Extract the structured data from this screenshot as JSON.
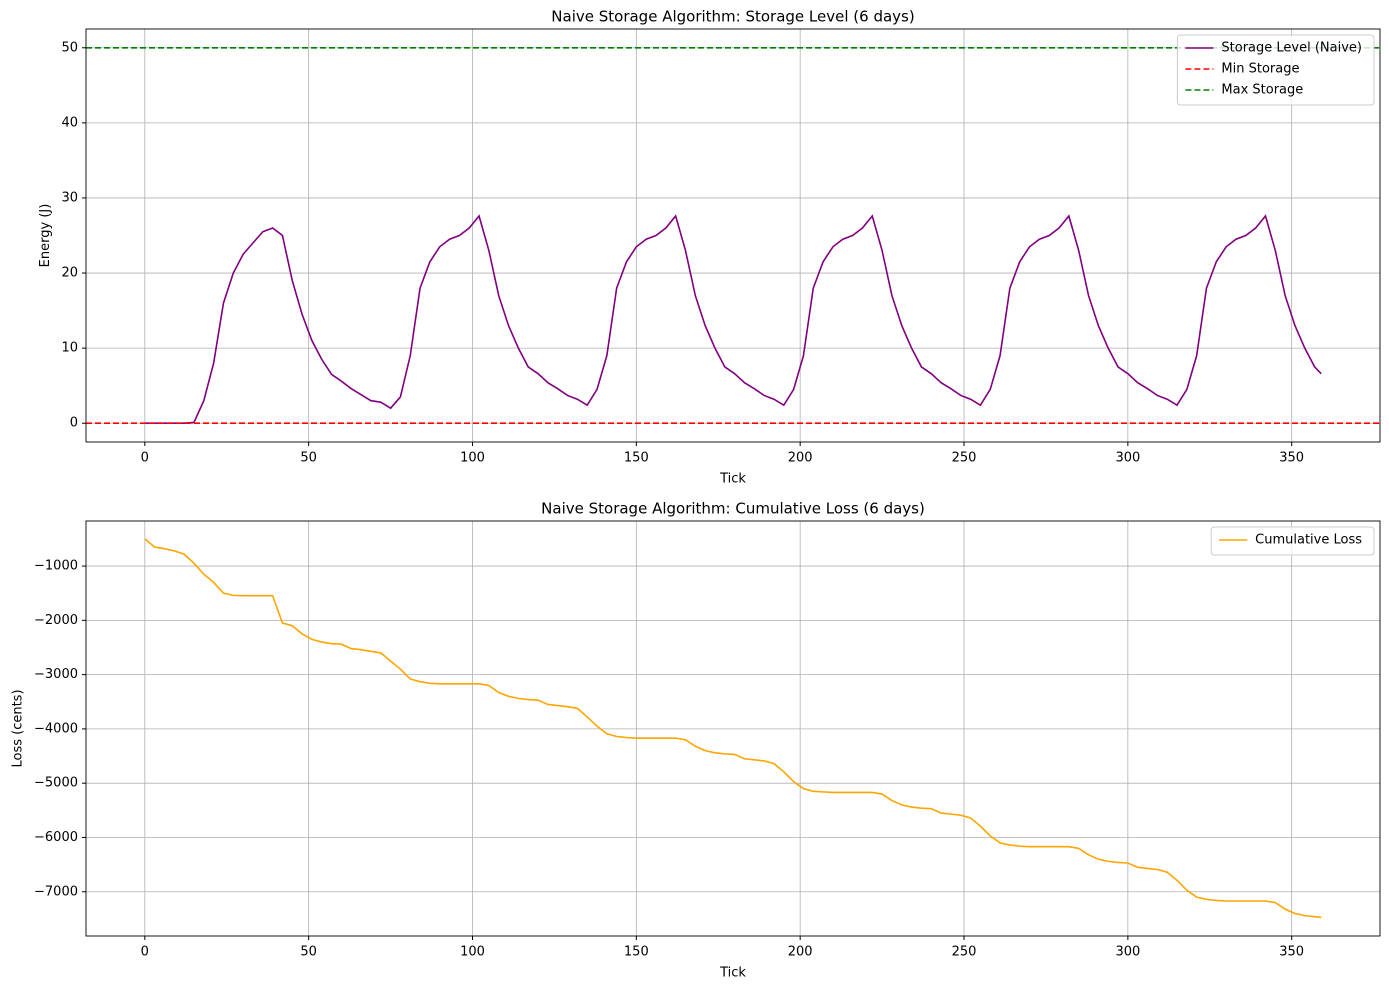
{
  "chart_data": [
    {
      "type": "line",
      "title": "Naive Storage Algorithm: Storage Level (6 days)",
      "xlabel": "Tick",
      "ylabel": "Energy (J)",
      "x": [
        0,
        3,
        6,
        9,
        12,
        15,
        18,
        21,
        24,
        27,
        30,
        33,
        36,
        39,
        42,
        45,
        48,
        51,
        54,
        57,
        60,
        63,
        66,
        69,
        72,
        75,
        78,
        81,
        84,
        87,
        90,
        93,
        96,
        99,
        102,
        105,
        108,
        111,
        114,
        117,
        120,
        123,
        126,
        129,
        132,
        135,
        138,
        141,
        144,
        147,
        150,
        153,
        156,
        159,
        162,
        165,
        168,
        171,
        174,
        177,
        180,
        183,
        186,
        189,
        192,
        195,
        198,
        201,
        204,
        207,
        210,
        213,
        216,
        219,
        222,
        225,
        228,
        231,
        234,
        237,
        240,
        243,
        246,
        249,
        252,
        255,
        258,
        261,
        264,
        267,
        270,
        273,
        276,
        279,
        282,
        285,
        288,
        291,
        294,
        297,
        300,
        303,
        306,
        309,
        312,
        315,
        318,
        321,
        324,
        327,
        330,
        333,
        336,
        339,
        342,
        345,
        348,
        351,
        354,
        357,
        359
      ],
      "series": [
        {
          "name": "Storage Level (Naive)",
          "color": "#800080",
          "style": "solid",
          "values": [
            0,
            0,
            0,
            0,
            0,
            0.1,
            3,
            8,
            16,
            20,
            22.5,
            24,
            25.5,
            26,
            25,
            19,
            14.5,
            11,
            8.5,
            6.5,
            5.6,
            4.6,
            3.8,
            3,
            2.8,
            2,
            3.5,
            9,
            18,
            21.5,
            23.5,
            24.5,
            25,
            26,
            27.6,
            23,
            17,
            13,
            10,
            7.5,
            6.6,
            5.4,
            4.6,
            3.7,
            3.2,
            2.4,
            4.5,
            9,
            18,
            21.5,
            23.5,
            24.5,
            25,
            26,
            27.6,
            23,
            17,
            13,
            10,
            7.5,
            6.6,
            5.4,
            4.6,
            3.7,
            3.2,
            2.4,
            4.5,
            9,
            18,
            21.5,
            23.5,
            24.5,
            25,
            26,
            27.6,
            23,
            17,
            13,
            10,
            7.5,
            6.6,
            5.4,
            4.6,
            3.7,
            3.2,
            2.4,
            4.5,
            9,
            18,
            21.5,
            23.5,
            24.5,
            25,
            26,
            27.6,
            23,
            17,
            13,
            10,
            7.5,
            6.6,
            5.4,
            4.6,
            3.7,
            3.2,
            2.4,
            4.5,
            9,
            18,
            21.5,
            23.5,
            24.5,
            25,
            26,
            27.6,
            23,
            17,
            13,
            10,
            7.5,
            6.6
          ]
        }
      ],
      "hlines": [
        {
          "name": "Min Storage",
          "color": "#ff0000",
          "value": 0
        },
        {
          "name": "Max Storage",
          "color": "#008000",
          "value": 50
        }
      ],
      "xlim": [
        -17.95,
        376.95
      ],
      "ylim": [
        -2.5,
        52.5
      ],
      "xticks": [
        0,
        50,
        100,
        150,
        200,
        250,
        300,
        350
      ],
      "yticks": [
        0,
        10,
        20,
        30,
        40,
        50
      ],
      "grid": true,
      "legend": "upper right"
    },
    {
      "type": "line",
      "title": "Naive Storage Algorithm: Cumulative Loss (6 days)",
      "xlabel": "Tick",
      "ylabel": "Loss (cents)",
      "x": [
        0,
        3,
        6,
        9,
        12,
        15,
        18,
        21,
        24,
        27,
        30,
        33,
        36,
        39,
        42,
        45,
        48,
        51,
        54,
        57,
        60,
        63,
        66,
        69,
        72,
        75,
        78,
        81,
        84,
        87,
        90,
        93,
        96,
        99,
        102,
        105,
        108,
        111,
        114,
        117,
        120,
        123,
        126,
        129,
        132,
        135,
        138,
        141,
        144,
        147,
        150,
        153,
        156,
        159,
        162,
        165,
        168,
        171,
        174,
        177,
        180,
        183,
        186,
        189,
        192,
        195,
        198,
        201,
        204,
        207,
        210,
        213,
        216,
        219,
        222,
        225,
        228,
        231,
        234,
        237,
        240,
        243,
        246,
        249,
        252,
        255,
        258,
        261,
        264,
        267,
        270,
        273,
        276,
        279,
        282,
        285,
        288,
        291,
        294,
        297,
        300,
        303,
        306,
        309,
        312,
        315,
        318,
        321,
        324,
        327,
        330,
        333,
        336,
        339,
        342,
        345,
        348,
        351,
        354,
        357,
        359
      ],
      "series": [
        {
          "name": "Cumulative Loss",
          "color": "#ffa500",
          "style": "solid",
          "values": [
            -500,
            -650,
            -680,
            -720,
            -780,
            -950,
            -1150,
            -1300,
            -1500,
            -1540,
            -1545,
            -1545,
            -1545,
            -1545,
            -2050,
            -2100,
            -2250,
            -2350,
            -2400,
            -2430,
            -2440,
            -2520,
            -2540,
            -2570,
            -2600,
            -2750,
            -2900,
            -3080,
            -3130,
            -3160,
            -3170,
            -3170,
            -3170,
            -3170,
            -3170,
            -3200,
            -3330,
            -3400,
            -3440,
            -3460,
            -3470,
            -3550,
            -3570,
            -3590,
            -3620,
            -3780,
            -3950,
            -4090,
            -4140,
            -4160,
            -4170,
            -4170,
            -4170,
            -4170,
            -4170,
            -4200,
            -4320,
            -4400,
            -4440,
            -4460,
            -4470,
            -4550,
            -4570,
            -4590,
            -4640,
            -4790,
            -4970,
            -5100,
            -5150,
            -5160,
            -5170,
            -5170,
            -5170,
            -5170,
            -5170,
            -5200,
            -5320,
            -5400,
            -5440,
            -5460,
            -5470,
            -5550,
            -5570,
            -5590,
            -5640,
            -5790,
            -5970,
            -6100,
            -6140,
            -6160,
            -6170,
            -6170,
            -6170,
            -6170,
            -6170,
            -6200,
            -6320,
            -6400,
            -6440,
            -6460,
            -6470,
            -6550,
            -6570,
            -6590,
            -6640,
            -6790,
            -6970,
            -7100,
            -7140,
            -7160,
            -7170,
            -7170,
            -7170,
            -7170,
            -7170,
            -7200,
            -7320,
            -7400,
            -7440,
            -7460,
            -7470
          ]
        }
      ],
      "xlim": [
        -17.95,
        376.95
      ],
      "ylim": [
        -7815,
        -170
      ],
      "xticks": [
        0,
        50,
        100,
        150,
        200,
        250,
        300,
        350
      ],
      "yticks": [
        {
          "value": -7000,
          "label": "−7000"
        },
        {
          "value": -6000,
          "label": "−6000"
        },
        {
          "value": -5000,
          "label": "−5000"
        },
        {
          "value": -4000,
          "label": "−4000"
        },
        {
          "value": -3000,
          "label": "−3000"
        },
        {
          "value": -2000,
          "label": "−2000"
        },
        {
          "value": -1000,
          "label": "−1000"
        }
      ],
      "grid": true,
      "legend": "upper right"
    }
  ]
}
